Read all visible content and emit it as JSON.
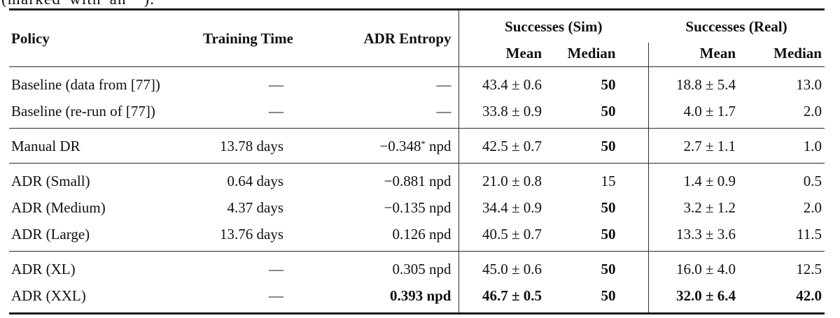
{
  "caption": {
    "text": "(marked with an *)."
  },
  "colors": {
    "text": "#111111",
    "rule_heavy": "#1b1b1b",
    "rule_light": "#2a2a2a",
    "divider_bar": "#2e2e2e",
    "background": "#ffffff"
  },
  "table": {
    "headers": {
      "policy": "Policy",
      "training_time": "Training Time",
      "adr_entropy": "ADR Entropy",
      "successes_sim": "Successes (Sim)",
      "successes_real": "Successes (Real)",
      "mean_sim": "Mean",
      "median_sim": "Median",
      "mean_real": "Mean",
      "median_real": "Median"
    },
    "sections": [
      {
        "rows": [
          {
            "policy": "Baseline (data from [77])",
            "cells": [
              {
                "t": "—"
              },
              {
                "t": "—"
              },
              {
                "t": "43.4 ± 0.6"
              },
              {
                "t": "50",
                "b": true
              },
              {
                "t": "18.8 ± 5.4"
              },
              {
                "t": "13.0"
              }
            ]
          },
          {
            "policy": "Baseline (re-run of [77])",
            "cells": [
              {
                "t": "—"
              },
              {
                "t": "—"
              },
              {
                "t": "33.8 ± 0.9"
              },
              {
                "t": "50",
                "b": true
              },
              {
                "t": "4.0 ± 1.7"
              },
              {
                "t": "2.0"
              }
            ]
          }
        ]
      },
      {
        "rows": [
          {
            "policy": "Manual DR",
            "cells": [
              {
                "t": "13.78 days"
              },
              {
                "t": "−0.348",
                "sup": "*",
                "t2": " npd"
              },
              {
                "t": "42.5 ± 0.7"
              },
              {
                "t": "50",
                "b": true
              },
              {
                "t": "2.7 ± 1.1"
              },
              {
                "t": "1.0"
              }
            ]
          }
        ]
      },
      {
        "rows": [
          {
            "policy": "ADR (Small)",
            "cells": [
              {
                "t": "0.64 days"
              },
              {
                "t": "−0.881 npd"
              },
              {
                "t": "21.0 ± 0.8"
              },
              {
                "t": "15"
              },
              {
                "t": "1.4 ± 0.9"
              },
              {
                "t": "0.5"
              }
            ]
          },
          {
            "policy": "ADR (Medium)",
            "cells": [
              {
                "t": "4.37 days"
              },
              {
                "t": "−0.135 npd"
              },
              {
                "t": "34.4 ± 0.9"
              },
              {
                "t": "50",
                "b": true
              },
              {
                "t": "3.2 ± 1.2"
              },
              {
                "t": "2.0"
              }
            ]
          },
          {
            "policy": "ADR (Large)",
            "cells": [
              {
                "t": "13.76 days"
              },
              {
                "t": "0.126 npd"
              },
              {
                "t": "40.5 ± 0.7"
              },
              {
                "t": "50",
                "b": true
              },
              {
                "t": "13.3 ± 3.6"
              },
              {
                "t": "11.5"
              }
            ]
          }
        ]
      },
      {
        "rows": [
          {
            "policy": "ADR (XL)",
            "cells": [
              {
                "t": "—"
              },
              {
                "t": "0.305 npd"
              },
              {
                "t": "45.0 ± 0.6"
              },
              {
                "t": "50",
                "b": true
              },
              {
                "t": "16.0 ± 4.0"
              },
              {
                "t": "12.5"
              }
            ]
          },
          {
            "policy": "ADR (XXL)",
            "cells": [
              {
                "t": "—"
              },
              {
                "t": "0.393 npd",
                "b": true
              },
              {
                "t": "46.7 ± 0.5",
                "b": true
              },
              {
                "t": "50",
                "b": true
              },
              {
                "t": "32.0 ± 6.4",
                "b": true
              },
              {
                "t": "42.0",
                "b": true
              }
            ]
          }
        ]
      }
    ]
  }
}
